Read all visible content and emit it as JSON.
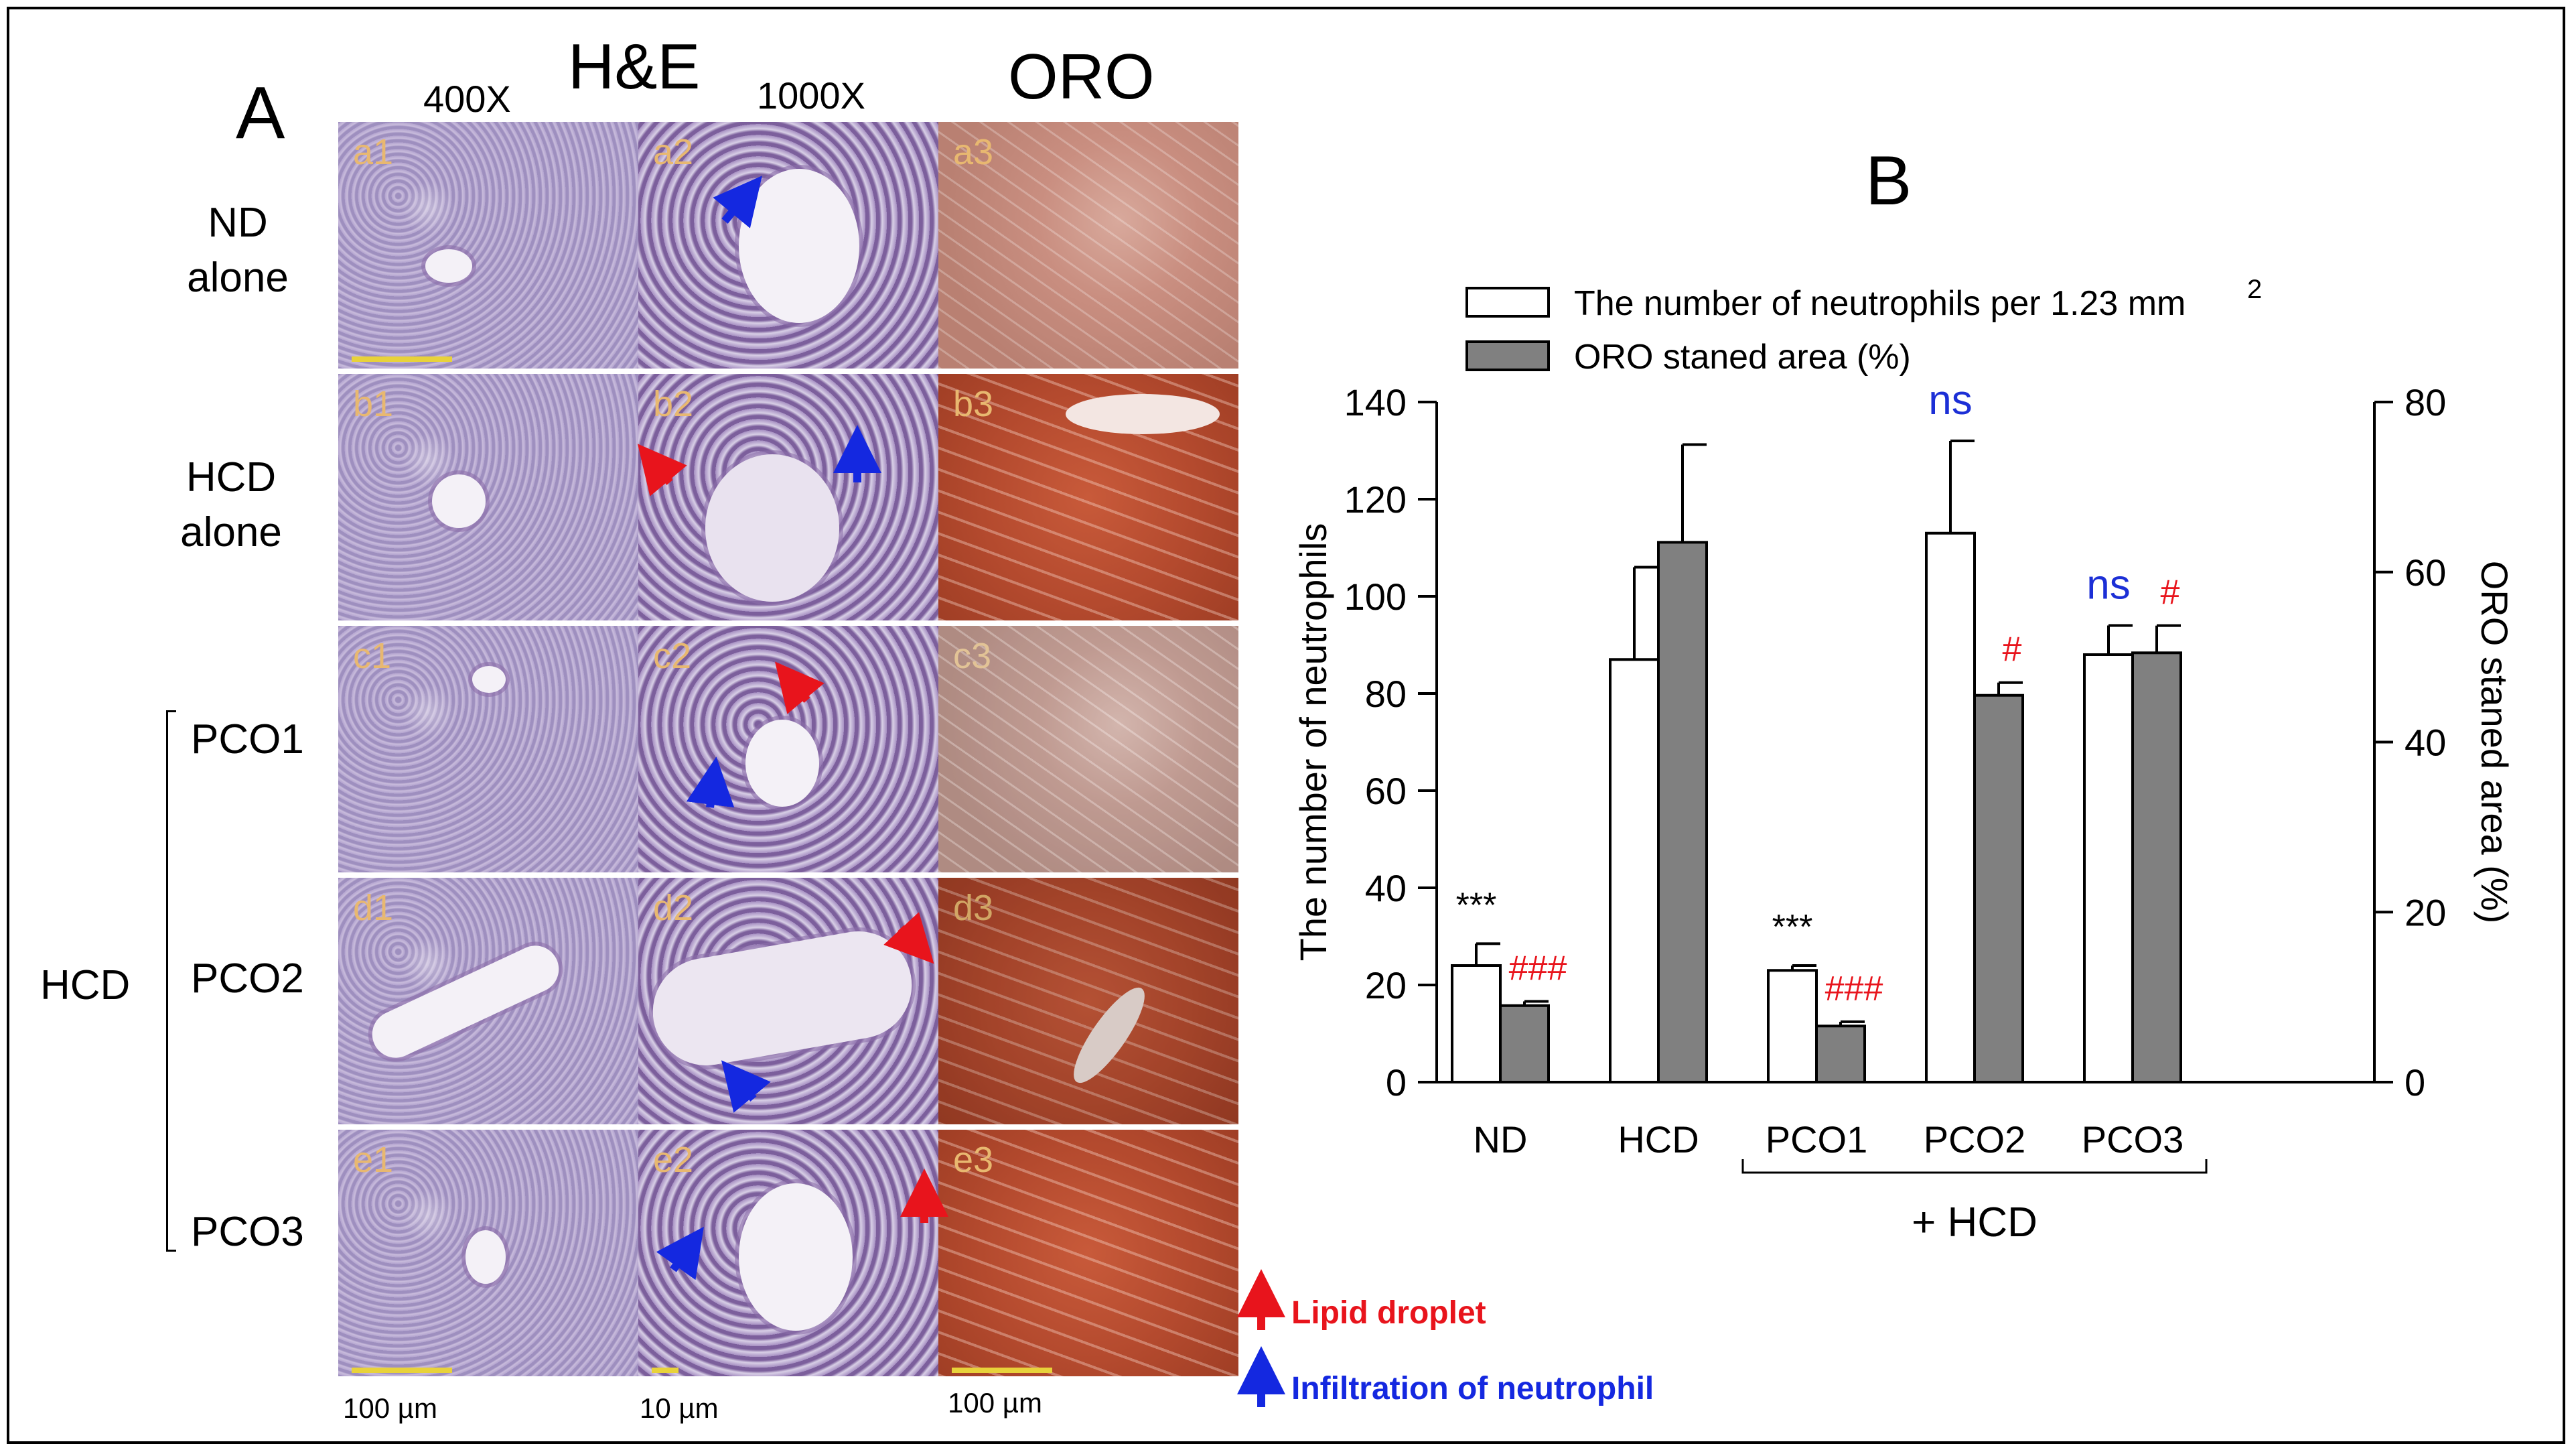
{
  "panel_a": {
    "letter": "A",
    "he_title": "H&E",
    "oro_title": "ORO",
    "mag_400": "400X",
    "mag_1000": "1000X",
    "rows": [
      {
        "label_1": "ND",
        "label_2": "alone",
        "tiles": [
          "a1",
          "a2",
          "a3"
        ]
      },
      {
        "label_1": "HCD",
        "label_2": "alone",
        "tiles": [
          "b1",
          "b2",
          "b3"
        ]
      },
      {
        "label_1": "PCO1",
        "label_2": "",
        "tiles": [
          "c1",
          "c2",
          "c3"
        ]
      },
      {
        "label_1": "PCO2",
        "label_2": "",
        "tiles": [
          "d1",
          "d2",
          "d3"
        ]
      },
      {
        "label_1": "PCO3",
        "label_2": "",
        "tiles": [
          "e1",
          "e2",
          "e3"
        ]
      }
    ],
    "group_label": "HCD",
    "scale_labels": [
      "100 µm",
      "10 µm",
      "100 µm"
    ],
    "legend": {
      "lipid": "Lipid droplet",
      "neutrophil": "Infiltration of neutrophil"
    },
    "colors": {
      "lipid_arrow": "#e8141c",
      "neutrophil_arrow": "#1428e0"
    }
  },
  "chart_data": {
    "type": "bar",
    "panel_letter": "B",
    "categories": [
      "ND",
      "HCD",
      "PCO1",
      "PCO2",
      "PCO3"
    ],
    "group_label": "+ HCD",
    "series": [
      {
        "name": "The number of neutrophils per 1.23 mm",
        "name_sup": "2",
        "axis": "left",
        "color": "#ffffff",
        "values": [
          24,
          87,
          23,
          113,
          88
        ],
        "errors": [
          4.5,
          19,
          1,
          19,
          6
        ]
      },
      {
        "name": "ORO staned area (%)",
        "axis": "right",
        "color": "#808080",
        "values": [
          9,
          63.5,
          6.6,
          45.5,
          50.5
        ],
        "errors": [
          0.5,
          11.5,
          0.5,
          1.5,
          3.2
        ]
      }
    ],
    "ylabel_left": "The number of neutrophils",
    "ylabel_right": "ORO staned area (%)",
    "ylim_left": [
      0,
      140
    ],
    "yticks_left": [
      0,
      20,
      40,
      60,
      80,
      100,
      120,
      140
    ],
    "ylim_right": [
      0,
      80
    ],
    "yticks_right": [
      0,
      20,
      40,
      60,
      80
    ],
    "annotations": [
      {
        "category": "ND",
        "series": 0,
        "text": "***",
        "color": "#000000"
      },
      {
        "category": "ND",
        "series": 1,
        "text": "###",
        "color": "#e8141c"
      },
      {
        "category": "PCO1",
        "series": 0,
        "text": "***",
        "color": "#000000"
      },
      {
        "category": "PCO1",
        "series": 1,
        "text": "###",
        "color": "#e8141c"
      },
      {
        "category": "PCO2",
        "series": 0,
        "text": "ns",
        "color": "#1c2fd6"
      },
      {
        "category": "PCO2",
        "series": 1,
        "text": "#",
        "color": "#e8141c"
      },
      {
        "category": "PCO3",
        "series": 0,
        "text": "ns",
        "color": "#1c2fd6"
      },
      {
        "category": "PCO3",
        "series": 1,
        "text": "#",
        "color": "#e8141c"
      }
    ],
    "grid": false,
    "legend_position": "top-left"
  }
}
